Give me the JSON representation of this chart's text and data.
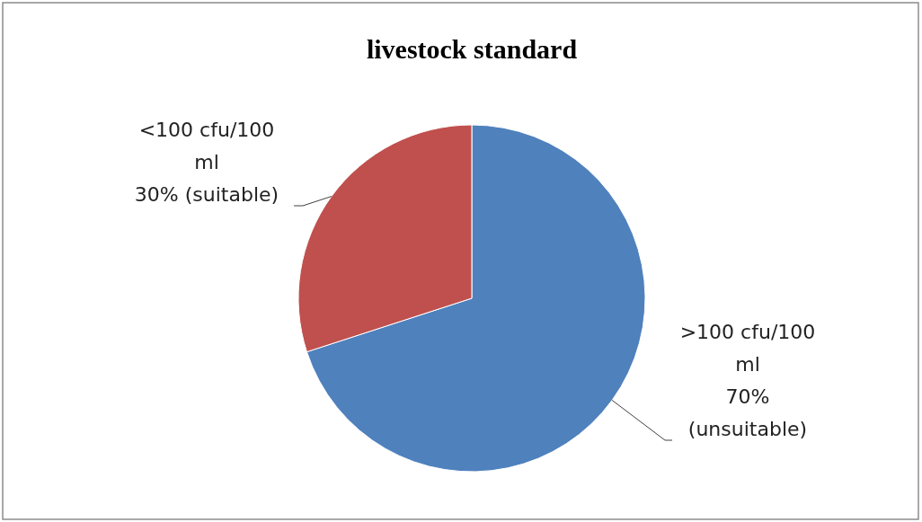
{
  "chart_data": {
    "type": "pie",
    "title": "livestock standard",
    "categories": [
      ">100 cfu/100 ml",
      "<100 cfu/100 ml"
    ],
    "values": [
      70,
      30
    ],
    "colors": [
      "#4f81bd",
      "#c0504d"
    ],
    "value_labels": [
      "70% (unsuitable)",
      "30% (suitable)"
    ]
  }
}
